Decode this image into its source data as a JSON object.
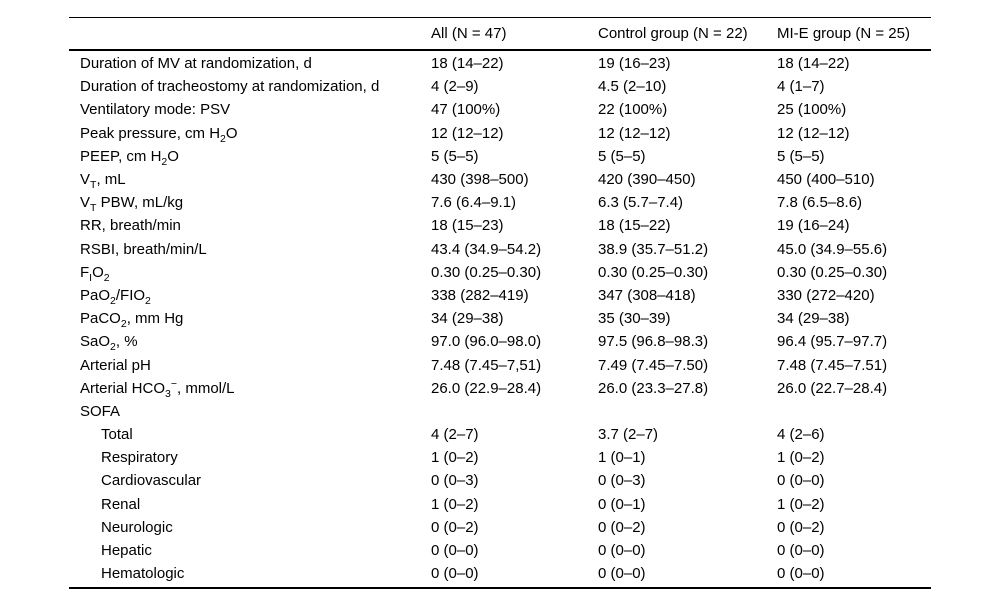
{
  "table": {
    "columns": [
      "",
      "All (N = 47)",
      "Control group (N = 22)",
      "MI-E group (N = 25)"
    ],
    "rows": [
      {
        "label_html": "Duration of MV at randomization, d",
        "indent": false,
        "values": [
          "18 (14–22)",
          "19 (16–23)",
          "18 (14–22)"
        ]
      },
      {
        "label_html": "Duration of tracheostomy at randomization, d",
        "indent": false,
        "values": [
          "4 (2–9)",
          "4.5 (2–10)",
          "4 (1–7)"
        ]
      },
      {
        "label_html": "Ventilatory mode: PSV",
        "indent": false,
        "values": [
          "47 (100%)",
          "22 (100%)",
          "25 (100%)"
        ]
      },
      {
        "label_html": "Peak pressure, cm H<sub>2</sub>O",
        "indent": false,
        "values": [
          "12 (12–12)",
          "12 (12–12)",
          "12 (12–12)"
        ]
      },
      {
        "label_html": "PEEP, cm H<sub>2</sub>O",
        "indent": false,
        "values": [
          "5 (5–5)",
          "5 (5–5)",
          "5 (5–5)"
        ]
      },
      {
        "label_html": "V<sub>T</sub>, mL",
        "indent": false,
        "values": [
          "430 (398–500)",
          "420 (390–450)",
          "450 (400–510)"
        ]
      },
      {
        "label_html": "V<sub>T</sub> PBW, mL/kg",
        "indent": false,
        "values": [
          "7.6 (6.4–9.1)",
          "6.3 (5.7–7.4)",
          "7.8 (6.5–8.6)"
        ]
      },
      {
        "label_html": "RR, breath/min",
        "indent": false,
        "values": [
          "18 (15–23)",
          "18 (15–22)",
          "19 (16–24)"
        ]
      },
      {
        "label_html": "RSBI, breath/min/L",
        "indent": false,
        "values": [
          "43.4 (34.9–54.2)",
          "38.9 (35.7–51.2)",
          "45.0 (34.9–55.6)"
        ]
      },
      {
        "label_html": "F<sub>I</sub>O<sub>2</sub>",
        "indent": false,
        "values": [
          "0.30 (0.25–0.30)",
          "0.30 (0.25–0.30)",
          "0.30 (0.25–0.30)"
        ]
      },
      {
        "label_html": "PaO<sub>2</sub>/FIO<sub>2</sub>",
        "indent": false,
        "values": [
          "338 (282–419)",
          "347 (308–418)",
          "330 (272–420)"
        ]
      },
      {
        "label_html": "PaCO<sub>2</sub>, mm Hg",
        "indent": false,
        "values": [
          "34 (29–38)",
          "35 (30–39)",
          "34 (29–38)"
        ]
      },
      {
        "label_html": "SaO<sub>2</sub>, %",
        "indent": false,
        "values": [
          "97.0 (96.0–98.0)",
          "97.5 (96.8–98.3)",
          "96.4 (95.7–97.7)"
        ]
      },
      {
        "label_html": "Arterial pH",
        "indent": false,
        "values": [
          "7.48 (7.45–7,51)",
          "7.49 (7.45–7.50)",
          "7.48 (7.45–7.51)"
        ]
      },
      {
        "label_html": "Arterial HCO<sub>3</sub><sup>−</sup>, mmol/L",
        "indent": false,
        "values": [
          "26.0 (22.9–28.4)",
          "26.0 (23.3–27.8)",
          "26.0 (22.7–28.4)"
        ]
      },
      {
        "label_html": "SOFA",
        "indent": false,
        "values": [
          "",
          "",
          ""
        ]
      },
      {
        "label_html": "Total",
        "indent": true,
        "values": [
          "4 (2–7)",
          "3.7 (2–7)",
          "4 (2–6)"
        ]
      },
      {
        "label_html": "Respiratory",
        "indent": true,
        "values": [
          "1 (0–2)",
          "1 (0–1)",
          "1 (0–2)"
        ]
      },
      {
        "label_html": "Cardiovascular",
        "indent": true,
        "values": [
          "0 (0–3)",
          "0 (0–3)",
          "0 (0–0)"
        ]
      },
      {
        "label_html": "Renal",
        "indent": true,
        "values": [
          "1 (0–2)",
          "0 (0–1)",
          "1 (0–2)"
        ]
      },
      {
        "label_html": "Neurologic",
        "indent": true,
        "values": [
          "0 (0–2)",
          "0 (0–2)",
          "0 (0–2)"
        ]
      },
      {
        "label_html": "Hepatic",
        "indent": true,
        "values": [
          "0 (0–0)",
          "0 (0–0)",
          "0 (0–0)"
        ]
      },
      {
        "label_html": "Hematologic",
        "indent": true,
        "values": [
          "0 (0–0)",
          "0 (0–0)",
          "0 (0–0)"
        ]
      }
    ]
  }
}
